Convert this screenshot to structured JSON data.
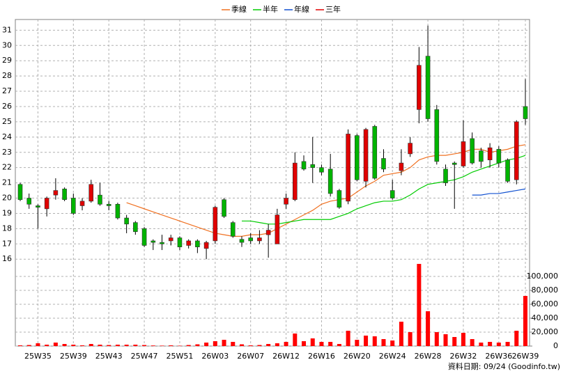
{
  "chart_data": {
    "type": "candlestick",
    "categories": [
      null,
      null,
      "25W35",
      null,
      null,
      null,
      "25W39",
      null,
      null,
      null,
      "25W43",
      null,
      null,
      null,
      "25W47",
      null,
      null,
      null,
      "25W51",
      null,
      null,
      null,
      "26W03",
      null,
      null,
      null,
      "26W07",
      null,
      null,
      null,
      "26W12",
      null,
      null,
      null,
      "26W16",
      null,
      null,
      null,
      "26W20",
      null,
      null,
      null,
      "26W24",
      null,
      null,
      null,
      "26W28",
      null,
      null,
      null,
      "26W32",
      null,
      null,
      null,
      "26W36",
      null,
      null,
      "26W39"
    ],
    "open": [
      20.9,
      20.0,
      19.5,
      19.3,
      20.2,
      20.6,
      20.0,
      19.5,
      19.8,
      20.2,
      19.6,
      19.6,
      18.7,
      18.4,
      18.0,
      17.2,
      17.1,
      17.2,
      17.4,
      16.9,
      17.2,
      16.7,
      17.2,
      19.9,
      18.4,
      17.3,
      17.4,
      17.2,
      17.6,
      17.0,
      19.6,
      19.9,
      22.4,
      22.2,
      22.0,
      21.9,
      20.5,
      19.8,
      24.1,
      21.1,
      24.7,
      22.6,
      20.5,
      21.8,
      22.9,
      25.8,
      29.3,
      25.8,
      21.9,
      22.3,
      22.1,
      23.9,
      23.1,
      22.5,
      23.2,
      22.5,
      21.2,
      26.0
    ],
    "high": [
      21.0,
      20.3,
      19.6,
      20.1,
      21.3,
      20.7,
      20.3,
      20.0,
      21.2,
      21.0,
      19.8,
      19.7,
      18.9,
      18.5,
      18.1,
      17.3,
      17.6,
      17.6,
      17.5,
      17.3,
      17.3,
      17.2,
      19.5,
      20.0,
      18.5,
      17.5,
      17.7,
      17.9,
      18.3,
      19.3,
      20.3,
      23.0,
      22.8,
      24.0,
      22.2,
      22.9,
      20.6,
      24.5,
      24.2,
      24.6,
      24.8,
      23.2,
      21.2,
      23.2,
      24.0,
      29.9,
      31.3,
      26.1,
      22.2,
      22.4,
      25.1,
      24.3,
      23.3,
      23.6,
      23.4,
      22.6,
      25.1,
      27.8
    ],
    "low": [
      19.8,
      19.3,
      18.0,
      18.8,
      19.9,
      19.8,
      18.9,
      19.2,
      19.7,
      19.5,
      19.2,
      18.6,
      17.7,
      17.6,
      16.8,
      16.6,
      16.6,
      16.9,
      16.6,
      16.7,
      16.4,
      16.0,
      17.0,
      18.7,
      17.4,
      16.8,
      17.0,
      17.0,
      16.1,
      17.0,
      19.3,
      19.8,
      21.8,
      21.0,
      21.5,
      20.1,
      19.3,
      19.6,
      21.1,
      20.7,
      21.2,
      21.7,
      19.9,
      21.5,
      22.7,
      24.9,
      25.0,
      22.2,
      20.8,
      19.3,
      22.0,
      22.2,
      22.0,
      22.0,
      22.0,
      21.0,
      20.9,
      24.8
    ],
    "close": [
      19.9,
      19.6,
      19.4,
      20.0,
      20.5,
      19.9,
      19.0,
      19.8,
      20.9,
      19.6,
      19.5,
      18.7,
      18.3,
      17.8,
      16.9,
      17.1,
      17.0,
      17.4,
      16.8,
      17.2,
      16.8,
      17.1,
      19.4,
      18.8,
      17.5,
      17.1,
      17.2,
      17.4,
      17.9,
      18.9,
      20.0,
      22.3,
      21.9,
      22.0,
      21.7,
      20.3,
      19.4,
      24.2,
      21.2,
      24.5,
      21.3,
      21.9,
      20.0,
      22.3,
      23.6,
      28.7,
      25.2,
      22.4,
      21.0,
      22.2,
      23.7,
      22.3,
      22.4,
      23.3,
      22.3,
      21.1,
      25.0,
      25.2
    ],
    "up_color": "#e00000",
    "down_color": "#00b400",
    "series": [
      {
        "name": "季線",
        "color": "#f07020",
        "values": [
          null,
          null,
          null,
          null,
          null,
          null,
          null,
          null,
          null,
          null,
          null,
          null,
          19.7,
          19.5,
          19.3,
          19.1,
          18.9,
          18.7,
          18.5,
          18.3,
          18.1,
          17.9,
          17.7,
          17.6,
          17.5,
          17.5,
          17.6,
          17.6,
          17.7,
          18.0,
          18.3,
          18.6,
          18.9,
          19.2,
          19.6,
          19.8,
          19.9,
          20.0,
          20.4,
          20.8,
          21.1,
          21.5,
          21.6,
          21.7,
          22.0,
          22.5,
          22.7,
          22.8,
          22.8,
          22.9,
          23.0,
          23.2,
          23.2,
          23.0,
          23.1,
          23.2,
          23.4,
          23.5
        ]
      },
      {
        "name": "半年",
        "color": "#00cc00",
        "values": [
          null,
          null,
          null,
          null,
          null,
          null,
          null,
          null,
          null,
          null,
          null,
          null,
          null,
          null,
          null,
          null,
          null,
          null,
          null,
          null,
          null,
          null,
          null,
          null,
          null,
          18.5,
          18.5,
          18.4,
          18.3,
          18.3,
          18.4,
          18.5,
          18.6,
          18.6,
          18.6,
          18.6,
          18.8,
          19.0,
          19.3,
          19.5,
          19.7,
          19.8,
          19.8,
          19.9,
          20.2,
          20.6,
          20.9,
          21.0,
          21.1,
          21.2,
          21.4,
          21.7,
          21.9,
          22.1,
          22.3,
          22.5,
          22.6,
          22.8
        ]
      },
      {
        "name": "年線",
        "color": "#1050d0",
        "values": [
          null,
          null,
          null,
          null,
          null,
          null,
          null,
          null,
          null,
          null,
          null,
          null,
          null,
          null,
          null,
          null,
          null,
          null,
          null,
          null,
          null,
          null,
          null,
          null,
          null,
          null,
          null,
          null,
          null,
          null,
          null,
          null,
          null,
          null,
          null,
          null,
          null,
          null,
          null,
          null,
          null,
          null,
          null,
          null,
          null,
          null,
          null,
          null,
          null,
          null,
          null,
          20.2,
          20.2,
          20.3,
          20.3,
          20.4,
          20.5,
          20.6
        ]
      },
      {
        "name": "三年",
        "color": "#e00000",
        "values": [
          null,
          null,
          null,
          null,
          null,
          null,
          null,
          null,
          null,
          null,
          null,
          null,
          null,
          null,
          null,
          null,
          null,
          null,
          null,
          null,
          null,
          null,
          null,
          null,
          null,
          null,
          null,
          null,
          null,
          null,
          null,
          null,
          null,
          null,
          null,
          null,
          null,
          null,
          null,
          null,
          null,
          null,
          null,
          null,
          null,
          null,
          null,
          null,
          null,
          null,
          null,
          null,
          null,
          null,
          null,
          null,
          null,
          null
        ]
      }
    ],
    "ylim": [
      15.6,
      31.7
    ],
    "yticks": [
      16,
      17,
      18,
      19,
      20,
      21,
      22,
      23,
      24,
      25,
      26,
      27,
      28,
      29,
      30,
      31
    ],
    "grid": true,
    "legend": "top",
    "volume": {
      "color": "#ff0000",
      "values": [
        1000,
        1500,
        4000,
        2000,
        5000,
        3000,
        2000,
        1000,
        3000,
        2000,
        1500,
        2000,
        2000,
        2000,
        1500,
        800,
        600,
        1000,
        500,
        1500,
        2500,
        5000,
        7000,
        9000,
        6000,
        2500,
        1000,
        1500,
        3000,
        4000,
        6000,
        18000,
        7000,
        11000,
        6000,
        6000,
        3000,
        22000,
        9000,
        15000,
        14000,
        10000,
        8000,
        35000,
        20000,
        118000,
        50000,
        20000,
        17000,
        13000,
        19000,
        10000,
        5000,
        6000,
        5000,
        6000,
        22000,
        72000
      ],
      "ylim": [
        0,
        120000
      ],
      "yticks": [
        0,
        {
          "value": 20000,
          "label": "20,000"
        },
        {
          "value": 40000,
          "label": "40,000"
        },
        {
          "value": 60000,
          "label": "60,000"
        },
        {
          "value": 80000,
          "label": "80,000"
        },
        {
          "value": 100000,
          "label": "100,000"
        }
      ]
    }
  },
  "footer": "資料日期: 09/24  (Goodinfo.tw)"
}
